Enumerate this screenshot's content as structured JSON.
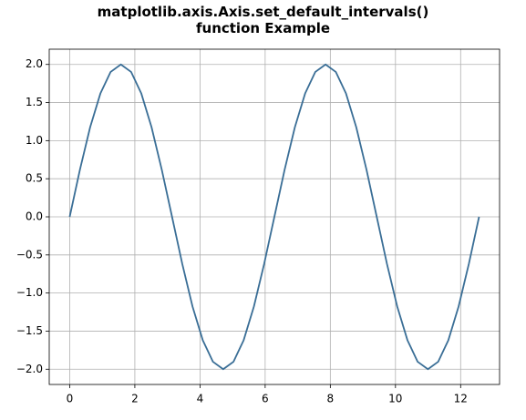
{
  "chart_data": {
    "type": "line",
    "title": "matplotlib.axis.Axis.set_default_intervals()\nfunction Example",
    "x": [
      0,
      0.314,
      0.628,
      0.942,
      1.257,
      1.571,
      1.885,
      2.199,
      2.513,
      2.827,
      3.142,
      3.456,
      3.77,
      4.084,
      4.398,
      4.712,
      5.027,
      5.341,
      5.655,
      5.969,
      6.283,
      6.597,
      6.912,
      7.226,
      7.54,
      7.854,
      8.168,
      8.482,
      8.796,
      9.111,
      9.425,
      9.739,
      10.053,
      10.367,
      10.681,
      10.996,
      11.31,
      11.624,
      11.938,
      12.252,
      12.566
    ],
    "series": [
      {
        "color": "#3a6e96",
        "values": [
          0,
          0.618,
          1.176,
          1.618,
          1.902,
          2,
          1.902,
          1.618,
          1.176,
          0.618,
          0,
          -0.618,
          -1.176,
          -1.618,
          -1.902,
          -2,
          -1.902,
          -1.618,
          -1.176,
          -0.618,
          0,
          0.618,
          1.176,
          1.618,
          1.902,
          2,
          1.902,
          1.618,
          1.176,
          0.618,
          0,
          -0.618,
          -1.176,
          -1.618,
          -1.902,
          -2,
          -1.902,
          -1.618,
          -1.176,
          -0.618,
          0
        ]
      }
    ],
    "xlim": [
      -0.628,
      13.195
    ],
    "ylim": [
      -2.2,
      2.2
    ],
    "xticks": [
      0,
      2,
      4,
      6,
      8,
      10,
      12
    ],
    "yticks": [
      {
        "value": -2,
        "label": "−2.0"
      },
      {
        "value": -1.5,
        "label": "−1.5"
      },
      {
        "value": -1,
        "label": "−1.0"
      },
      {
        "value": -0.5,
        "label": "−0.5"
      },
      {
        "value": 0,
        "label": "0.0"
      },
      {
        "value": 0.5,
        "label": "0.5"
      },
      {
        "value": 1,
        "label": "1.0"
      },
      {
        "value": 1.5,
        "label": "1.5"
      },
      {
        "value": 2,
        "label": "2.0"
      }
    ],
    "grid": true
  }
}
